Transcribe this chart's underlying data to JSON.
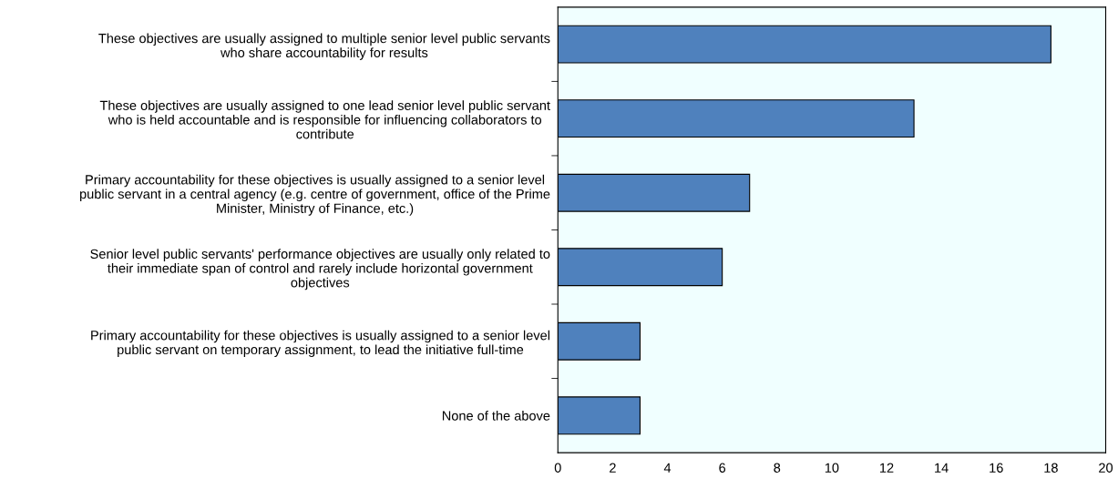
{
  "chart_data": {
    "type": "bar",
    "orientation": "horizontal",
    "categories": [
      "These objectives are usually assigned to multiple senior level public servants\nwho share accountability for results",
      "These objectives are usually assigned to one lead senior level public servant\nwho is held accountable and is responsible for influencing collaborators to\ncontribute",
      "Primary accountability for these objectives is usually assigned to a senior level\npublic servant in a central agency (e.g. centre of government, office of the Prime\nMinister, Ministry of Finance, etc.)",
      "Senior level public servants' performance objectives are usually only related to\ntheir immediate span of control and rarely include horizontal government\nobjectives",
      "Primary accountability for these objectives is usually assigned to a senior level\npublic servant on temporary assignment, to lead the initiative full-time",
      "None of the above"
    ],
    "values": [
      18,
      13,
      7,
      6,
      3,
      3
    ],
    "color": "#4f81bd",
    "xlim": [
      0,
      20
    ],
    "xticks": [
      0,
      2,
      4,
      6,
      8,
      10,
      12,
      14,
      16,
      18,
      20
    ]
  }
}
